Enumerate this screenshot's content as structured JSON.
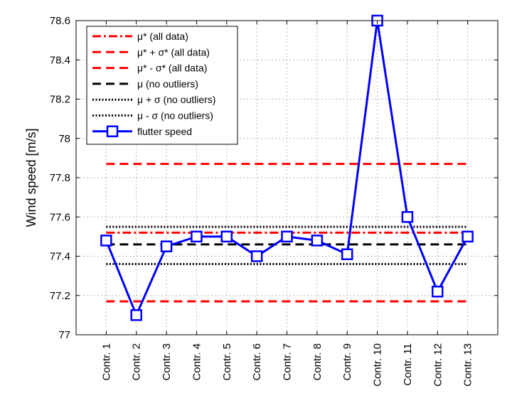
{
  "chart_data": {
    "type": "line",
    "ylabel": "Wind speed [m/s]",
    "xlabel": "",
    "categories": [
      "Contr. 1",
      "Contr. 2",
      "Contr. 3",
      "Contr. 4",
      "Contr. 5",
      "Contr. 6",
      "Contr. 7",
      "Contr. 8",
      "Contr. 9",
      "Contr. 10",
      "Contr. 11",
      "Contr. 12",
      "Contr. 13"
    ],
    "ylim": [
      77,
      78.6
    ],
    "yticks": [
      "77",
      "77.2",
      "77.4",
      "77.6",
      "77.8",
      "78",
      "78.2",
      "78.4",
      "78.6"
    ],
    "grid": true,
    "legend_position": "top-left",
    "series": [
      {
        "name": "μ* (all data)",
        "style": "dash-dot",
        "color": "#ff0000",
        "value": 77.52
      },
      {
        "name": "μ* + σ* (all data)",
        "style": "dashed",
        "color": "#ff0000",
        "value": 77.87
      },
      {
        "name": "μ* - σ* (all data)",
        "style": "dashed",
        "color": "#ff0000",
        "value": 77.17
      },
      {
        "name": "μ (no outliers)",
        "style": "dashed",
        "color": "#000000",
        "value": 77.46
      },
      {
        "name": "μ + σ (no outliers)",
        "style": "dotted",
        "color": "#000000",
        "value": 77.55
      },
      {
        "name": "μ - σ (no outliers)",
        "style": "dotted",
        "color": "#000000",
        "value": 77.36
      },
      {
        "name": "flutter speed",
        "style": "solid-square-markers",
        "color": "#0000ff",
        "values": [
          77.48,
          77.1,
          77.45,
          77.5,
          77.5,
          77.4,
          77.5,
          77.48,
          77.41,
          78.6,
          77.6,
          77.22,
          77.5
        ]
      }
    ]
  }
}
